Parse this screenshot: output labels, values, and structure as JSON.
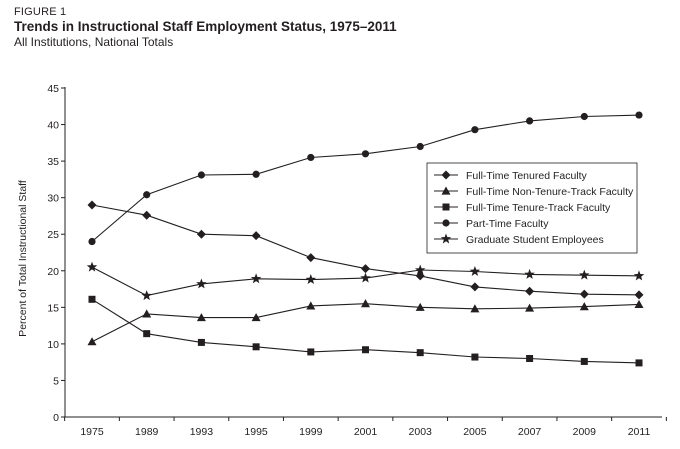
{
  "figure_label": "FIGURE 1",
  "chart_data": {
    "type": "line",
    "title": "Trends in Instructional Staff Employment Status, 1975–2011",
    "subtitle": "All Institutions, National Totals",
    "xlabel": "",
    "ylabel": "Percent of Total Instructional Staff",
    "ylim": [
      0,
      45
    ],
    "yticks": [
      "0",
      "5",
      "10",
      "15",
      "20",
      "25",
      "30",
      "35",
      "40",
      "45"
    ],
    "categories": [
      "1975",
      "1989",
      "1993",
      "1995",
      "1999",
      "2001",
      "2003",
      "2005",
      "2007",
      "2009",
      "2011"
    ],
    "grid": false,
    "legend_position": "right",
    "series": [
      {
        "name": "Full-Time Tenured Faculty",
        "marker": "diamond",
        "values": [
          29.0,
          27.6,
          25.0,
          24.8,
          21.8,
          20.3,
          19.3,
          17.8,
          17.2,
          16.8,
          16.7
        ]
      },
      {
        "name": "Full-Time Non-Tenure-Track Faculty",
        "marker": "triangle",
        "values": [
          10.3,
          14.1,
          13.6,
          13.6,
          15.2,
          15.5,
          15.0,
          14.8,
          14.9,
          15.1,
          15.4
        ]
      },
      {
        "name": "Full-Time Tenure-Track Faculty",
        "marker": "square",
        "values": [
          16.1,
          11.4,
          10.2,
          9.6,
          8.9,
          9.2,
          8.8,
          8.2,
          8.0,
          7.6,
          7.4
        ]
      },
      {
        "name": "Part-Time Faculty",
        "marker": "circle",
        "values": [
          24.0,
          30.4,
          33.1,
          33.2,
          35.5,
          36.0,
          37.0,
          39.3,
          40.5,
          41.1,
          41.3
        ]
      },
      {
        "name": "Graduate Student Employees",
        "marker": "star",
        "values": [
          20.5,
          16.6,
          18.2,
          18.9,
          18.8,
          19.0,
          20.1,
          19.9,
          19.5,
          19.4,
          19.3
        ]
      }
    ]
  }
}
